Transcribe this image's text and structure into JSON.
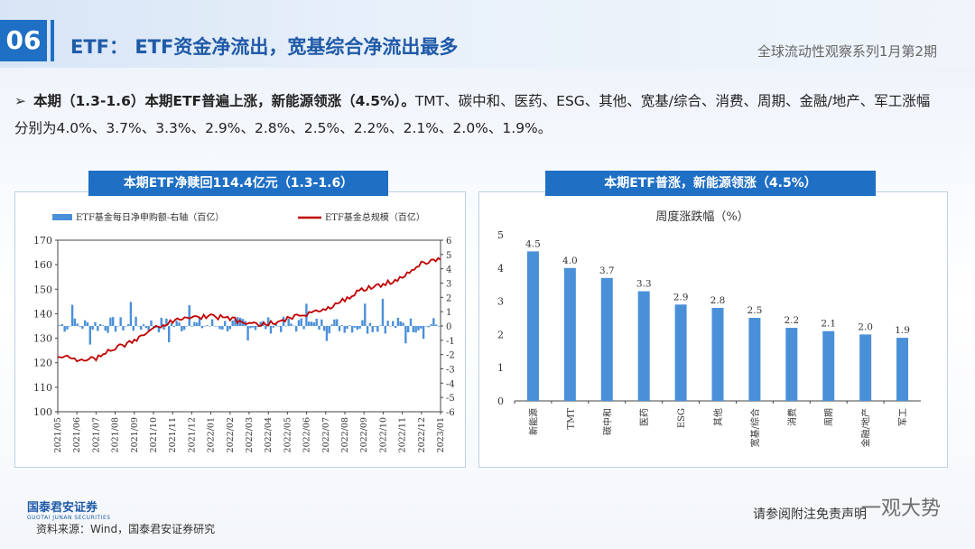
{
  "header": {
    "page_number": "06",
    "title": "ETF： ETF资金净流出，宽基综合净流出最多",
    "series_name": "全球流动性观察系列1月第2期"
  },
  "summary": {
    "bold_text": "本期（1.3-1.6）本期ETF普遍上涨，新能源领涨（4.5%）。",
    "rest_text": "TMT、碳中和、医药、ESG、其他、宽基/综合、消费、周期、金融/地产、军工涨幅分别为4.0%、3.7%、3.3%、2.9%、2.8%、2.5%、2.2%、2.1%、2.0%、1.9%。"
  },
  "left_panel": {
    "heading": "本期ETF净赎回114.4亿元（1.3-1.6）"
  },
  "right_panel": {
    "heading": "本期ETF普涨，新能源领涨（4.5%）"
  },
  "chart_data": [
    {
      "type": "line",
      "series": [
        {
          "name": "ETF基金每日净申购额-右轴（百亿）",
          "kind": "bar",
          "axis": "right",
          "color": "#4a90d9"
        },
        {
          "name": "ETF基金总规模（百亿）",
          "kind": "line",
          "axis": "left",
          "color": "#c00000",
          "x": [
            "2021/05",
            "2021/06",
            "2021/07",
            "2021/08",
            "2021/09",
            "2021/10",
            "2021/11",
            "2021/12",
            "2022/01",
            "2022/02",
            "2022/03",
            "2022/04",
            "2022/05",
            "2022/06",
            "2022/07",
            "2022/08",
            "2022/09",
            "2022/10",
            "2022/11",
            "2022/12",
            "2023/01"
          ],
          "values": [
            123,
            121,
            122,
            126,
            129,
            134,
            137,
            138,
            139,
            138,
            136,
            136,
            138,
            140,
            142,
            146,
            150,
            152,
            155,
            161,
            162
          ]
        }
      ],
      "x_ticks": [
        "2021/05",
        "2021/06",
        "2021/07",
        "2021/08",
        "2021/09",
        "2021/10",
        "2021/11",
        "2021/12",
        "2022/01",
        "2022/02",
        "2022/03",
        "2022/04",
        "2022/05",
        "2022/06",
        "2022/07",
        "2022/08",
        "2022/09",
        "2022/10",
        "2022/11",
        "2022/12",
        "2023/01"
      ],
      "ylim": [
        100,
        170
      ],
      "y_ticks": [
        100,
        110,
        120,
        130,
        140,
        150,
        160,
        170
      ],
      "y2lim": [
        -6,
        6
      ],
      "y2_ticks": [
        -6,
        -5,
        -4,
        -3,
        -2,
        -1,
        0,
        1,
        2,
        3,
        4,
        5,
        6
      ],
      "grid": false,
      "legend": "top"
    },
    {
      "type": "bar",
      "title": "周度涨跌幅（%）",
      "categories": [
        "新能源",
        "TMT",
        "碳中和",
        "医药",
        "ESG",
        "其他",
        "宽基/综合",
        "消费",
        "周期",
        "金融/地产",
        "军工"
      ],
      "values": [
        4.5,
        4.0,
        3.7,
        3.3,
        2.9,
        2.8,
        2.5,
        2.2,
        2.1,
        2.0,
        1.9
      ],
      "data_labels": [
        "4.5",
        "4.0",
        "3.7",
        "3.3",
        "2.9",
        "2.8",
        "2.5",
        "2.2",
        "2.1",
        "2.0",
        "1.9"
      ],
      "ylim": [
        0,
        5
      ],
      "y_ticks": [
        0,
        1,
        2,
        3,
        4,
        5
      ],
      "color": "#4a90d9",
      "grid": false
    }
  ],
  "footer": {
    "logo_text": "国泰君安证券",
    "logo_sub": "GUOTAI JUNAN SECURITIES",
    "source": "资料来源：Wind，国泰君安证券研究",
    "disclaimer": "请参阅附注免责声明",
    "watermark": "一观大势"
  }
}
